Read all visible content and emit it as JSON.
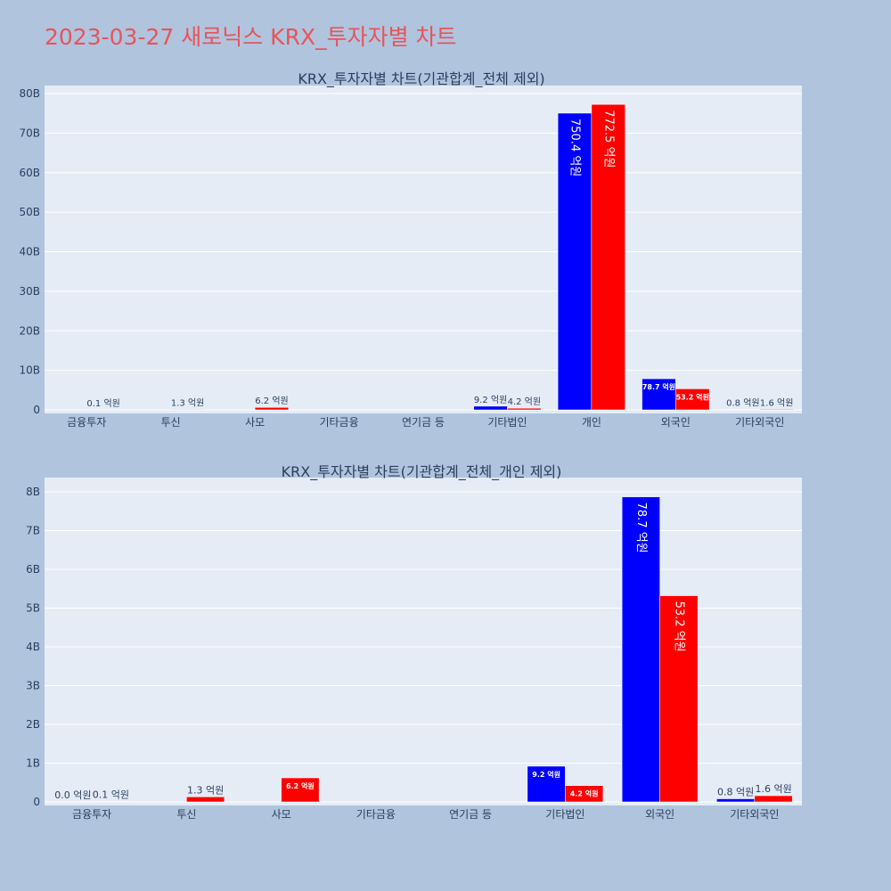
{
  "page_title": "2023-03-27 새로닉스 KRX_투자자별 차트",
  "colors": {
    "background": "#b0c4de",
    "plot_bg": "#e5ecf6",
    "buy": "#0000ff",
    "sell": "#ff0000",
    "title": "#e8545a"
  },
  "chart_data": [
    {
      "type": "bar",
      "title": "KRX_투자자별 차트(기관합계_전체 제외)",
      "categories": [
        "금융투자",
        "투신",
        "사모",
        "기타금융",
        "연기금 등",
        "기타법인",
        "개인",
        "외국인",
        "기타외국인"
      ],
      "yticks": [
        "0",
        "10B",
        "20B",
        "30B",
        "40B",
        "50B",
        "60B",
        "70B",
        "80B"
      ],
      "ylim": [
        0,
        80000000000
      ],
      "series": [
        {
          "color": "#0000ff",
          "values": [
            0,
            0,
            0,
            0,
            0,
            920000000,
            75040000000,
            7870000000,
            80000000
          ],
          "labels": [
            "",
            "",
            "",
            "",
            "",
            "9.2 억원",
            "750.4 억원",
            "78.7 억원",
            "0.8 억원"
          ]
        },
        {
          "color": "#ff0000",
          "values": [
            10000000,
            130000000,
            620000000,
            0,
            0,
            420000000,
            77250000000,
            5320000000,
            160000000
          ],
          "labels": [
            "0.1 억원",
            "1.3 억원",
            "6.2 억원",
            "",
            "",
            "4.2 억원",
            "772.5 억원",
            "53.2 억원",
            "1.6 억원"
          ]
        }
      ]
    },
    {
      "type": "bar",
      "title": "KRX_투자자별 차트(기관합계_전체_개인 제외)",
      "categories": [
        "금융투자",
        "투신",
        "사모",
        "기타금융",
        "연기금 등",
        "기타법인",
        "외국인",
        "기타외국인"
      ],
      "yticks": [
        "0",
        "1B",
        "2B",
        "3B",
        "4B",
        "5B",
        "6B",
        "7B",
        "8B"
      ],
      "ylim": [
        0,
        8000000000
      ],
      "series": [
        {
          "color": "#0000ff",
          "values": [
            0,
            0,
            0,
            0,
            0,
            920000000,
            7870000000,
            80000000
          ],
          "labels": [
            "0.0 억원",
            "",
            "",
            "",
            "",
            "9.2 억원",
            "78.7 억원",
            "0.8 억원"
          ]
        },
        {
          "color": "#ff0000",
          "values": [
            10000000,
            130000000,
            620000000,
            0,
            0,
            420000000,
            5320000000,
            160000000
          ],
          "labels": [
            "0.1 억원",
            "1.3 억원",
            "6.2 억원",
            "",
            "",
            "4.2 억원",
            "53.2 억원",
            "1.6 억원"
          ]
        }
      ]
    }
  ]
}
